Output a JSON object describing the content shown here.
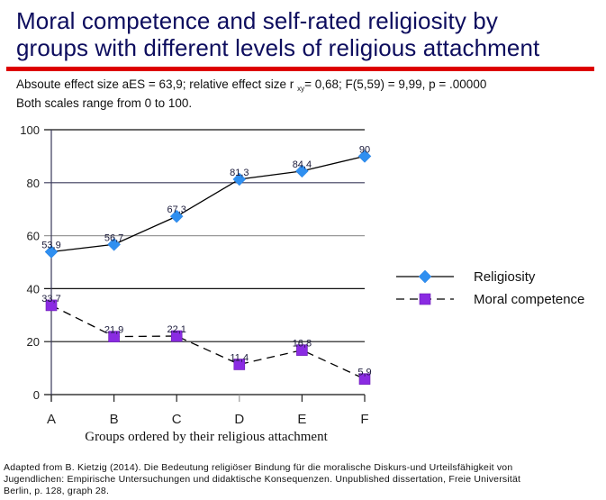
{
  "header": {
    "title_line1": "Moral competence and self-rated religiosity by",
    "title_line2": "groups with different levels of religious attachment",
    "subtitle_line1_a": "Absoute effect size aES = 63,9; relative effect size r ",
    "subtitle_line1_sub": "xy",
    "subtitle_line1_b": "= 0,68;  F(5,59) = 9,99, p = .00000",
    "subtitle_line2": "Both scales range from 0 to 100."
  },
  "colors": {
    "title": "#0d0d5e",
    "rule": "#dd0000",
    "religiosity_marker": "#2f8ff0",
    "moral_marker": "#8a2be2",
    "line": "#000000"
  },
  "source": {
    "line1": "Adapted from B. Kietzig (2014). Die Bedeutung religiöser Bindung für die moralische Diskurs-und Urteilsfähigkeit von",
    "line2": "Jugendlichen: Empirische Untersuchungen und didaktische Konsequenzen. Unpublished dissertation, Freie Universität",
    "line3": "Berlin, p. 128, graph 28."
  },
  "chart_data": {
    "type": "line",
    "title": "Moral competence and self-rated religiosity by groups with different levels of religious attachment",
    "xlabel": "Groups ordered by their religious attachment",
    "ylabel": "",
    "categories": [
      "A",
      "B",
      "C",
      "D",
      "E",
      "F"
    ],
    "ylim": [
      0,
      100
    ],
    "yticks": [
      0,
      20,
      40,
      60,
      80,
      100
    ],
    "grid": true,
    "legend_position": "right",
    "series": [
      {
        "name": "Religiosity",
        "values": [
          53.9,
          56.7,
          67.3,
          81.3,
          84.4,
          90
        ],
        "labels": [
          "53,9",
          "56,7",
          "67,3",
          "81,3",
          "84,4",
          "90"
        ],
        "line_style": "solid",
        "marker": "diamond"
      },
      {
        "name": "Moral competence",
        "values": [
          33.7,
          21.9,
          22.1,
          11.4,
          16.8,
          5.9
        ],
        "labels": [
          "33,7",
          "21,9",
          "22,1",
          "11,4",
          "16,8",
          "5,9"
        ],
        "line_style": "dashed",
        "marker": "square"
      }
    ]
  }
}
